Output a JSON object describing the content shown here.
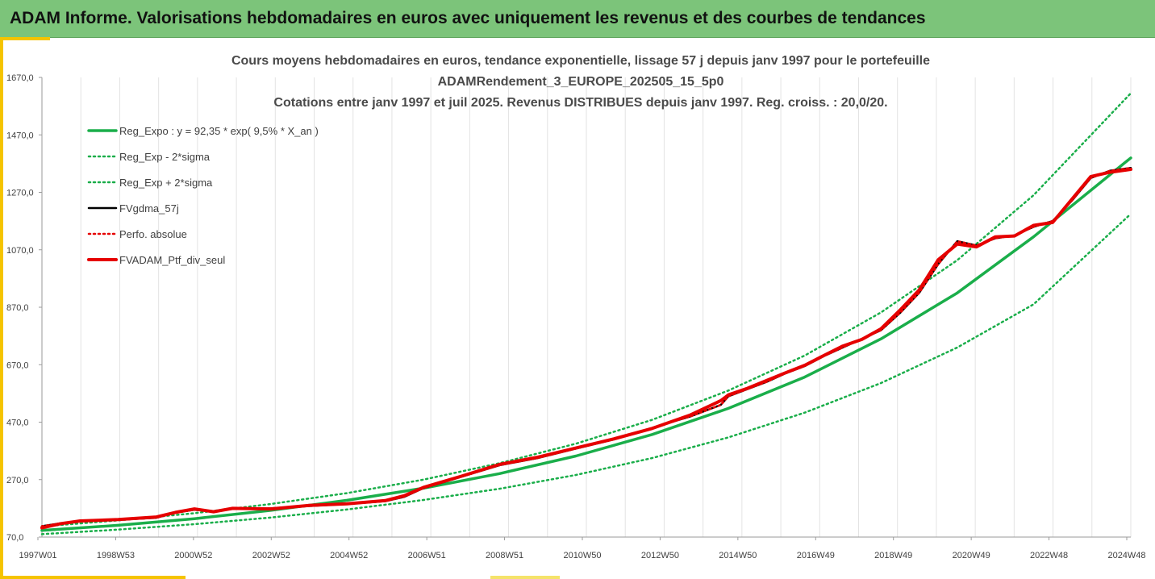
{
  "banner": {
    "title": "ADAM Informe. Valorisations hebdomadaires en euros avec uniquement les revenus et des courbes de tendances"
  },
  "chart_data": {
    "type": "line",
    "title_lines": [
      "Cours moyens hebdomadaires  en euros, tendance exponentielle, lissage 57 j depuis janv 1997 pour le portefeuille",
      "ADAMRendement_3_EUROPE_202505_15_5p0",
      "Cotations  entre janv 1997 et juil 2025. Revenus DISTRIBUES depuis janv 1997. Reg. croiss. : 20,0/20."
    ],
    "xlabel": "",
    "ylabel": "",
    "ylim": [
      70,
      1670
    ],
    "y_ticks": [
      "70,0",
      "270,0",
      "470,0",
      "670,0",
      "870,0",
      "1070,0",
      "1270,0",
      "1470,0",
      "1670,0"
    ],
    "x_tick_labels": [
      "1997W01",
      "1998W53",
      "2000W52",
      "2002W52",
      "2004W52",
      "2006W51",
      "2008W51",
      "2010W50",
      "2012W50",
      "2014W50",
      "2016W49",
      "2018W49",
      "2020W49",
      "2022W48",
      "2024W48"
    ],
    "x_range_years": [
      1997.0,
      2025.55
    ],
    "grid": "vertical",
    "legend_position": "top-left",
    "series": [
      {
        "name": "Reg_Expo : y = 92,35 * exp( 9,5% *  X_an )",
        "color": "#1aae4a",
        "style": "solid",
        "width": 3.5,
        "x": [
          1997,
          1999,
          2001,
          2003,
          2005,
          2007,
          2009,
          2011,
          2013,
          2015,
          2017,
          2019,
          2021,
          2023,
          2025.55
        ],
        "y": [
          93,
          111,
          134,
          163,
          198,
          240,
          291,
          352,
          427,
          518,
          627,
          760,
          920,
          1115,
          1390
        ]
      },
      {
        "name": "Reg_Exp - 2*sigma",
        "color": "#1aae4a",
        "style": "dotted",
        "width": 2.5,
        "x": [
          1997,
          1999,
          2001,
          2003,
          2005,
          2007,
          2009,
          2011,
          2013,
          2015,
          2017,
          2019,
          2021,
          2023,
          2025.55
        ],
        "y": [
          80,
          96,
          115,
          138,
          166,
          199,
          238,
          286,
          345,
          417,
          503,
          606,
          730,
          880,
          1195
        ]
      },
      {
        "name": "Reg_Exp + 2*sigma",
        "color": "#1aae4a",
        "style": "dotted",
        "width": 2.5,
        "x": [
          1997,
          1999,
          2001,
          2003,
          2005,
          2007,
          2009,
          2011,
          2013,
          2015,
          2017,
          2019,
          2021,
          2023,
          2025.55
        ],
        "y": [
          107,
          128,
          153,
          185,
          223,
          270,
          327,
          395,
          478,
          580,
          702,
          852,
          1034,
          1260,
          1615
        ]
      },
      {
        "name": "FVgdma_57j",
        "color": "#000000",
        "style": "solid",
        "width": 2.5,
        "x": [
          1997,
          1997.5,
          1998,
          1999,
          2000,
          2000.5,
          2001,
          2001.5,
          2002,
          2003,
          2004,
          2005,
          2006,
          2006.5,
          2007,
          2008,
          2009,
          2010,
          2011,
          2012,
          2013,
          2014,
          2014.8,
          2015,
          2015.5,
          2016,
          2016.5,
          2017,
          2017.5,
          2018,
          2018.5,
          2019,
          2019.5,
          2020,
          2020.5,
          2021,
          2021.5,
          2022,
          2022.5,
          2023,
          2023.5,
          2024,
          2024.5,
          2025,
          2025.55
        ],
        "y": [
          108,
          118,
          125,
          130,
          137,
          155,
          165,
          160,
          168,
          170,
          178,
          185,
          195,
          210,
          240,
          280,
          320,
          345,
          378,
          410,
          450,
          490,
          530,
          560,
          585,
          610,
          640,
          665,
          700,
          730,
          760,
          790,
          850,
          920,
          1020,
          1100,
          1085,
          1110,
          1120,
          1150,
          1170,
          1240,
          1320,
          1345,
          1355
        ]
      },
      {
        "name": "Perfo. absolue",
        "color": "#e60000",
        "style": "dotted",
        "width": 2.5,
        "x": [
          1997,
          1997.5,
          1998,
          1999,
          2000,
          2000.5,
          2001,
          2001.5,
          2002,
          2003,
          2004,
          2005,
          2006,
          2006.5,
          2007,
          2008,
          2009,
          2010,
          2011,
          2012,
          2013,
          2014,
          2014.8,
          2015,
          2015.5,
          2016,
          2016.5,
          2017,
          2017.5,
          2018,
          2018.5,
          2019,
          2019.5,
          2020,
          2020.5,
          2021,
          2021.5,
          2022,
          2022.5,
          2023,
          2023.5,
          2024,
          2024.5,
          2025,
          2025.55
        ],
        "y": [
          108,
          118,
          125,
          130,
          137,
          155,
          165,
          160,
          168,
          170,
          178,
          185,
          195,
          210,
          240,
          280,
          320,
          345,
          378,
          410,
          450,
          490,
          530,
          560,
          585,
          610,
          640,
          665,
          700,
          730,
          760,
          790,
          850,
          920,
          1020,
          1100,
          1085,
          1110,
          1120,
          1150,
          1170,
          1240,
          1320,
          1345,
          1355
        ]
      },
      {
        "name": "FVADAM_Ptf_div_seul",
        "color": "#e60000",
        "style": "solid",
        "width": 4,
        "x": [
          1997,
          1997.5,
          1998,
          1999,
          2000,
          2000.5,
          2001,
          2001.5,
          2002,
          2003,
          2004,
          2005,
          2006,
          2006.5,
          2007,
          2008,
          2009,
          2010,
          2011,
          2012,
          2013,
          2014,
          2014.8,
          2015,
          2015.5,
          2016,
          2016.5,
          2017,
          2017.5,
          2018,
          2018.5,
          2019,
          2019.5,
          2020,
          2020.5,
          2021,
          2021.5,
          2022,
          2022.5,
          2023,
          2023.5,
          2024,
          2024.5,
          2025,
          2025.55
        ],
        "y": [
          102,
          117,
          126,
          131,
          140,
          156,
          168,
          158,
          170,
          168,
          180,
          186,
          197,
          214,
          243,
          282,
          323,
          348,
          380,
          412,
          448,
          495,
          545,
          565,
          588,
          615,
          642,
          668,
          702,
          735,
          758,
          795,
          860,
          930,
          1035,
          1090,
          1080,
          1115,
          1118,
          1155,
          1165,
          1245,
          1325,
          1340,
          1350
        ]
      }
    ]
  }
}
